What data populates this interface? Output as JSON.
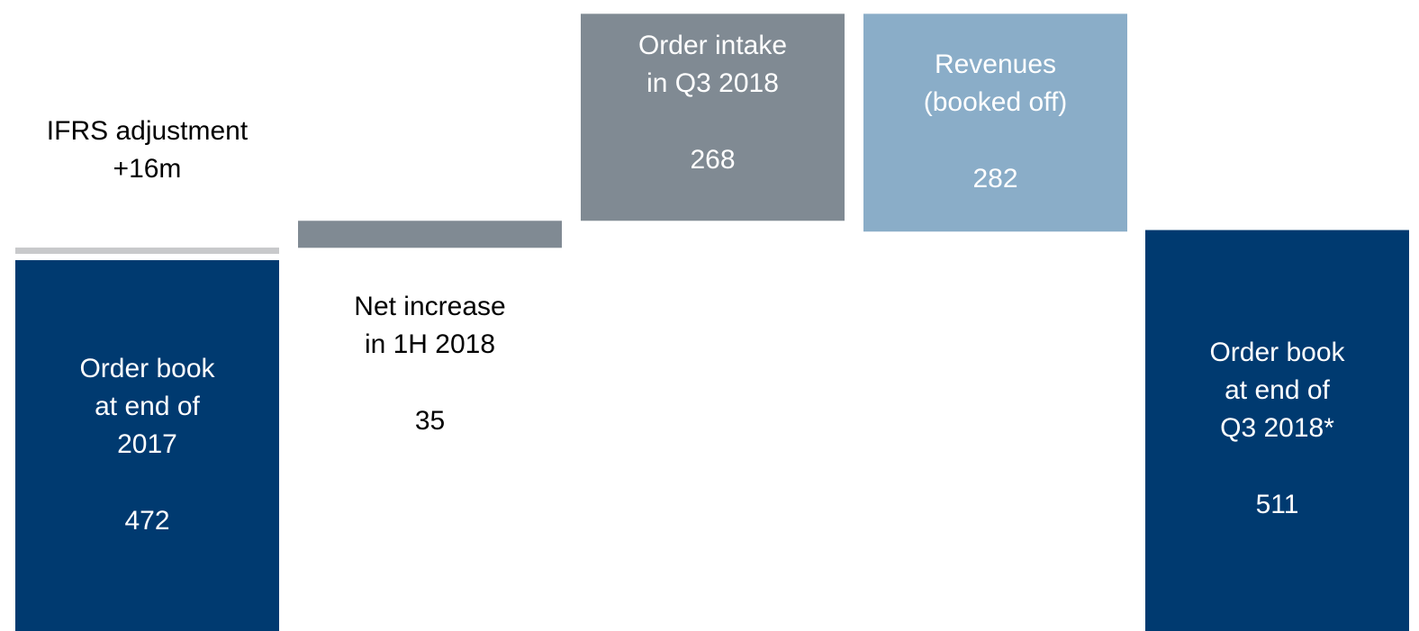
{
  "chart_data": {
    "type": "waterfall",
    "categories": [
      [
        "Order book",
        "at end of",
        "2017"
      ],
      [
        "IFRS adjustment"
      ],
      [
        "Net increase",
        "in 1H 2018"
      ],
      [
        "Order intake",
        "in Q3 2018"
      ],
      [
        "Revenues",
        "(booked off)"
      ],
      [
        "Order book",
        "at end of",
        "Q3 2018*"
      ]
    ],
    "values": [
      472,
      16,
      35,
      268,
      282,
      511
    ],
    "value_labels": [
      null,
      "+16m",
      null,
      null,
      null,
      null
    ],
    "measures": [
      "absolute",
      "increase",
      "increase",
      "increase",
      "decrease",
      "absolute"
    ],
    "colors": [
      "#003a70",
      "#c8c9cb",
      "#808a93",
      "#808a93",
      "#8aadc8",
      "#003a70"
    ]
  }
}
